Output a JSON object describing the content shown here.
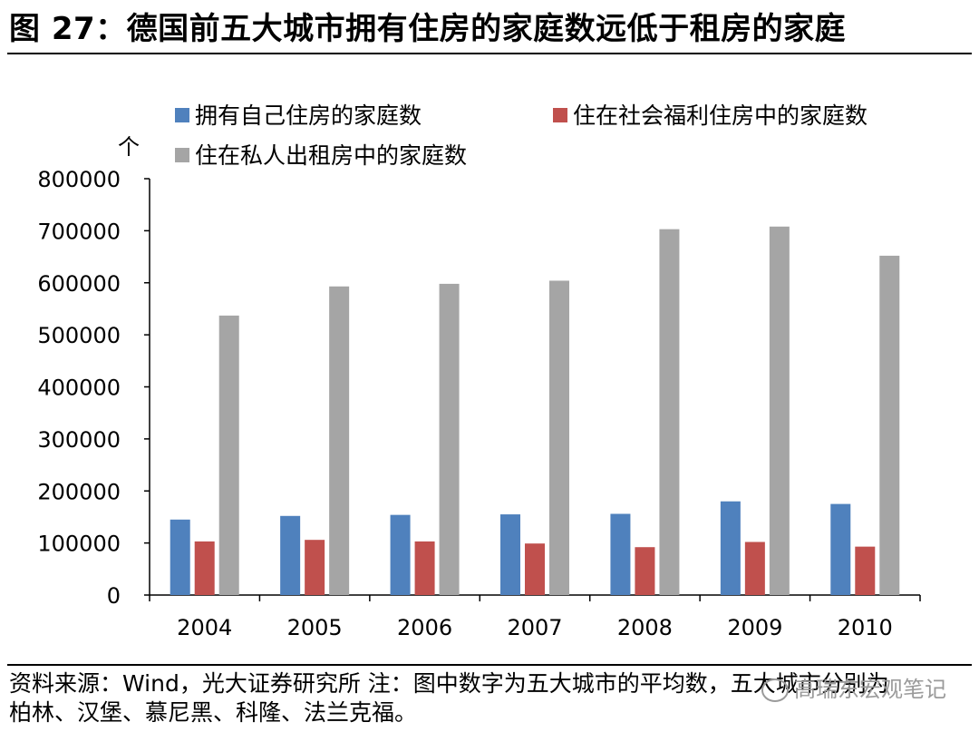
{
  "title": "图 27：德国前五大城市拥有住房的家庭数远低于租房的家庭",
  "source_lines": [
    "资料来源：Wind，光大证券研究所  注：图中数字为五大城市的平均数，五大城市分别为",
    "柏林、汉堡、慕尼黑、科隆、法兰克福。"
  ],
  "watermark": "高瑞东宏观笔记",
  "chart_data": {
    "type": "bar",
    "unit_label": "个",
    "categories": [
      "2004",
      "2005",
      "2006",
      "2007",
      "2008",
      "2009",
      "2010"
    ],
    "series": [
      {
        "name": "拥有自己住房的家庭数",
        "color": "#4F81BD",
        "values": [
          145000,
          152000,
          154000,
          155000,
          156000,
          180000,
          175000
        ]
      },
      {
        "name": "住在社会福利住房中的家庭数",
        "color": "#C0504D",
        "values": [
          103000,
          106000,
          103000,
          99000,
          92000,
          102000,
          93000
        ]
      },
      {
        "name": "住在私人出租房中的家庭数",
        "color": "#A5A5A5",
        "values": [
          537000,
          593000,
          598000,
          604000,
          703000,
          708000,
          652000
        ]
      }
    ],
    "ylim": [
      0,
      800000
    ],
    "yticks": [
      0,
      100000,
      200000,
      300000,
      400000,
      500000,
      600000,
      700000,
      800000
    ],
    "xlabel": "",
    "ylabel": "",
    "grid": false,
    "legend_position": "top"
  }
}
